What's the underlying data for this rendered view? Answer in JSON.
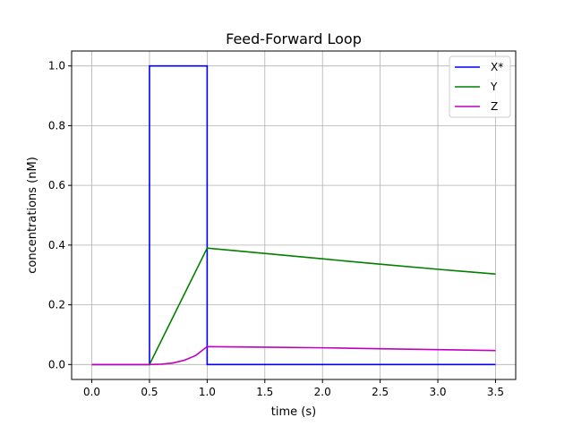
{
  "chart_data": {
    "type": "line",
    "title": "Feed-Forward Loop",
    "xlabel": "time (s)",
    "ylabel": "concentrations (nM)",
    "xlim": [
      -0.175,
      3.675
    ],
    "ylim": [
      -0.05,
      1.05
    ],
    "xticks": [
      0.0,
      0.5,
      1.0,
      1.5,
      2.0,
      2.5,
      3.0,
      3.5
    ],
    "xtick_labels": [
      "0.0",
      "0.5",
      "1.0",
      "1.5",
      "2.0",
      "2.5",
      "3.0",
      "3.5"
    ],
    "yticks": [
      0.0,
      0.2,
      0.4,
      0.6,
      0.8,
      1.0
    ],
    "ytick_labels": [
      "0.0",
      "0.2",
      "0.4",
      "0.6",
      "0.8",
      "1.0"
    ],
    "grid": true,
    "legend_position": "top-right",
    "series": [
      {
        "name": "X*",
        "color": "#0000ff",
        "x": [
          0.0,
          0.5,
          0.5,
          1.0,
          1.0,
          3.5
        ],
        "y": [
          0.0,
          0.0,
          1.0,
          1.0,
          0.0,
          0.0
        ]
      },
      {
        "name": "Y",
        "color": "#008000",
        "x": [
          0.0,
          0.5,
          1.0,
          1.5,
          2.0,
          2.5,
          3.0,
          3.5
        ],
        "y": [
          0.0,
          0.0,
          0.39,
          0.372,
          0.354,
          0.336,
          0.319,
          0.303
        ]
      },
      {
        "name": "Z",
        "color": "#bf00bf",
        "x": [
          0.0,
          0.5,
          0.6,
          0.7,
          0.8,
          0.9,
          1.0,
          1.5,
          2.0,
          2.5,
          3.0,
          3.5
        ],
        "y": [
          0.0,
          0.0,
          0.001,
          0.005,
          0.014,
          0.03,
          0.06,
          0.058,
          0.056,
          0.053,
          0.05,
          0.047
        ]
      }
    ]
  }
}
